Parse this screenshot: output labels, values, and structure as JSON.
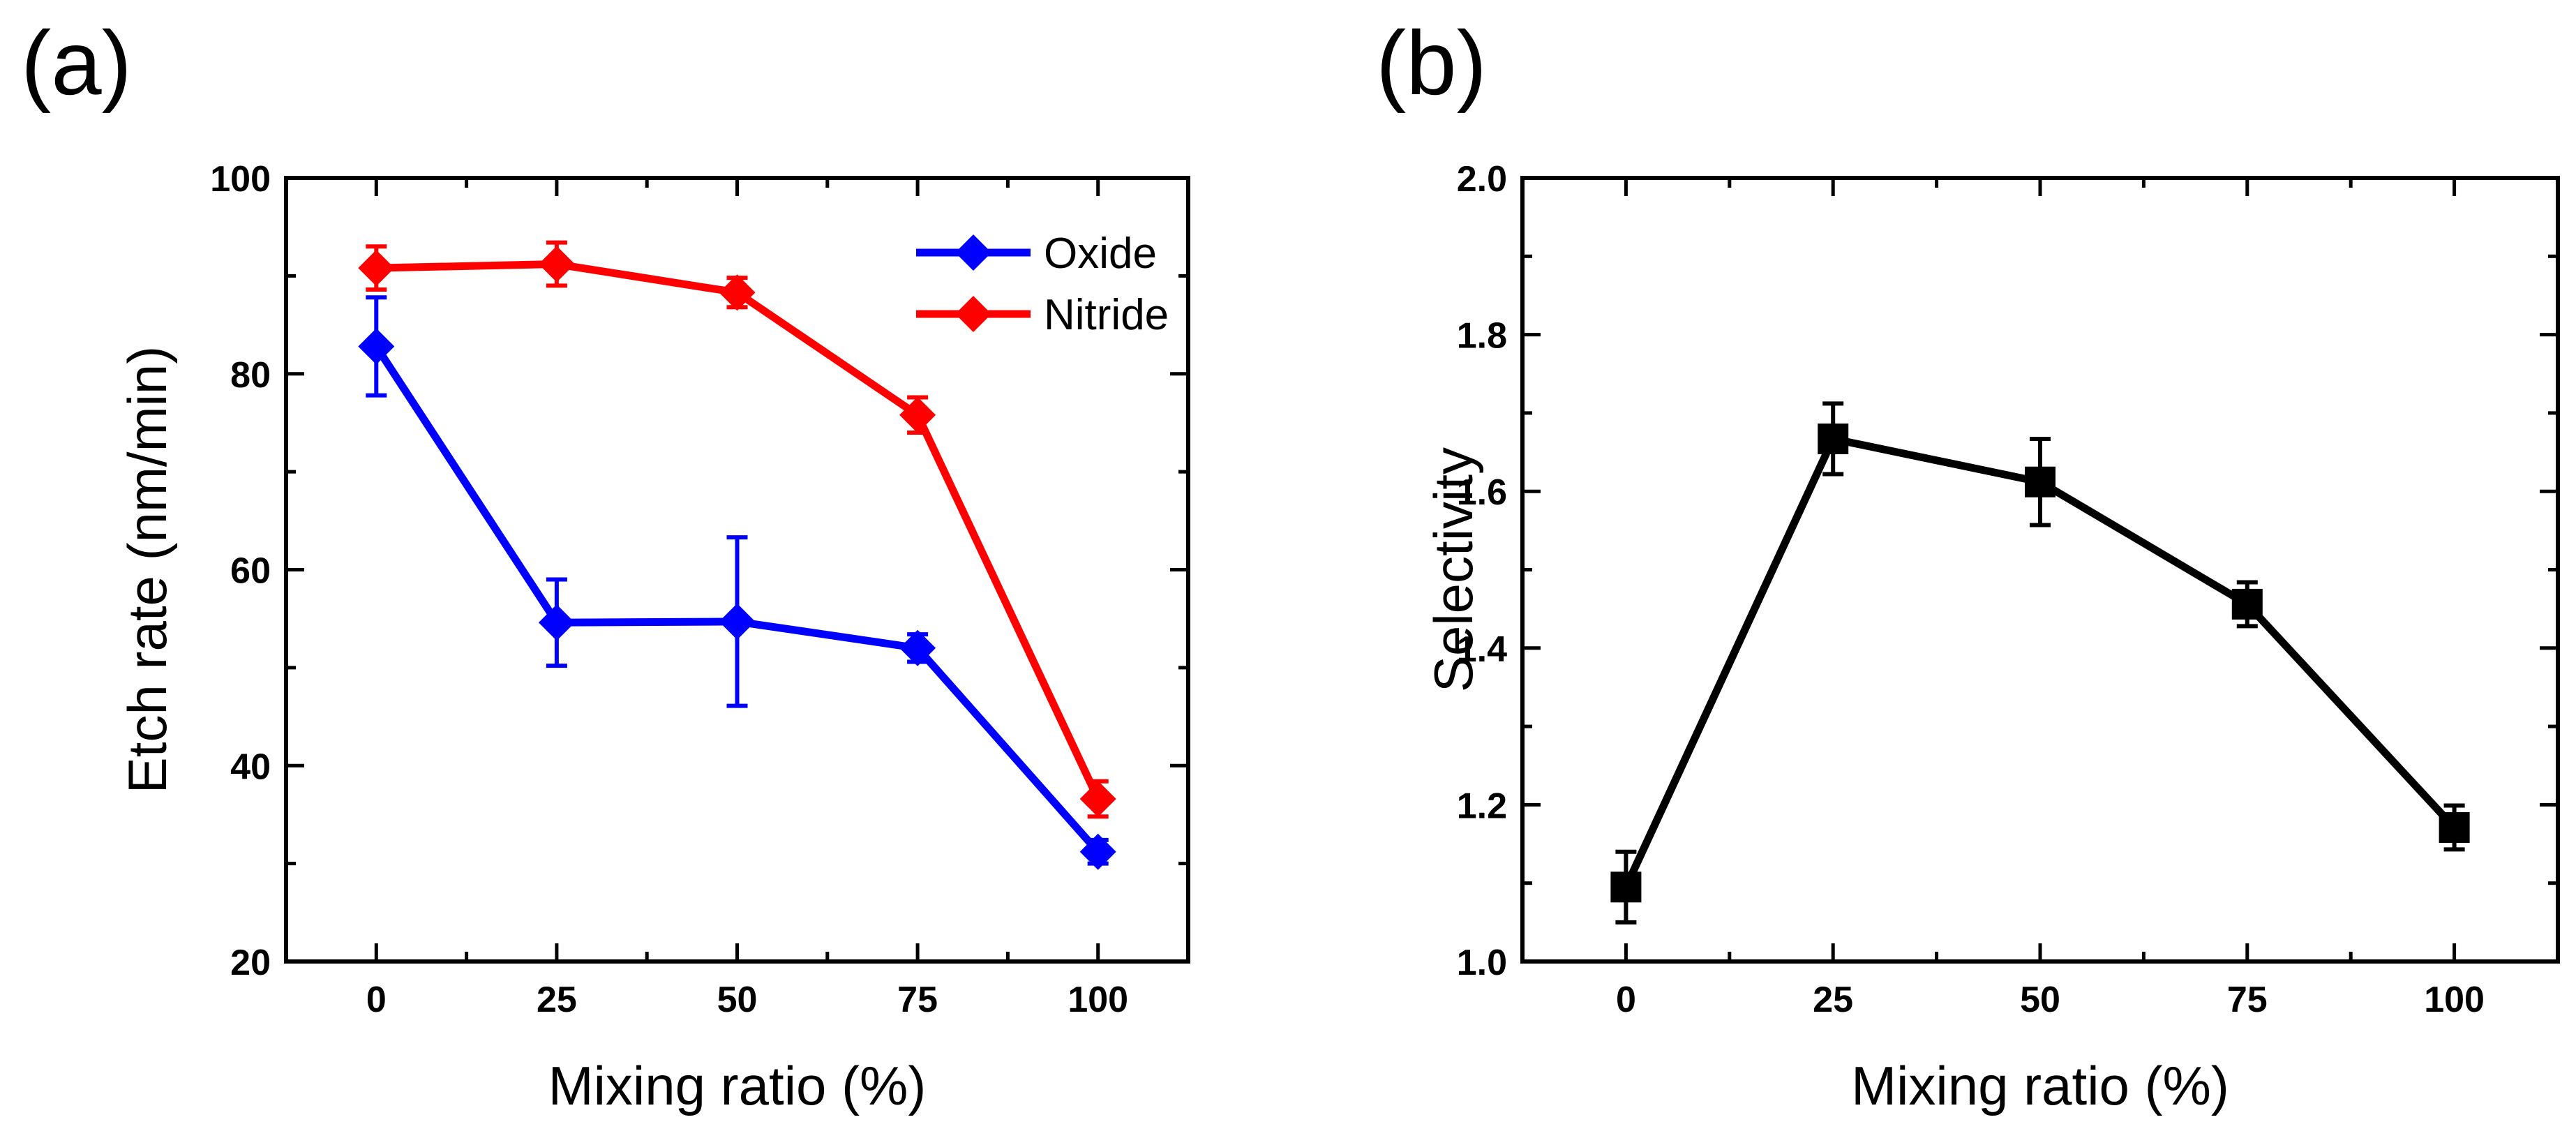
{
  "chart_data": [
    {
      "panel_label": "(a)",
      "type": "line",
      "xlabel": "Mixing ratio (%)",
      "ylabel": "Etch rate (nm/min)",
      "x": [
        0,
        25,
        50,
        75,
        100
      ],
      "xticks": [
        "0",
        "25",
        "50",
        "75",
        "100"
      ],
      "xlim": [
        -12.5,
        112.5
      ],
      "ylim": [
        20,
        100
      ],
      "yticks": [
        "20",
        "40",
        "60",
        "80",
        "100"
      ],
      "grid": false,
      "legend_position": "top-right",
      "series": [
        {
          "name": "Oxide",
          "color": "#0000ff",
          "marker": "diamond",
          "values": [
            82.8,
            54.6,
            54.7,
            52.0,
            31.2
          ],
          "errors": [
            5.0,
            4.4,
            8.6,
            1.4,
            1.2
          ]
        },
        {
          "name": "Nitride",
          "color": "#ff0000",
          "marker": "diamond",
          "values": [
            90.8,
            91.2,
            88.3,
            75.8,
            36.6
          ],
          "errors": [
            2.2,
            2.2,
            1.5,
            1.8,
            1.8
          ]
        }
      ]
    },
    {
      "panel_label": "(b)",
      "type": "line",
      "xlabel": "Mixing ratio (%)",
      "ylabel": "Selectivity",
      "x": [
        0,
        25,
        50,
        75,
        100
      ],
      "xticks": [
        "0",
        "25",
        "50",
        "75",
        "100"
      ],
      "xlim": [
        -12.5,
        112.5
      ],
      "ylim": [
        1.0,
        2.0
      ],
      "yticks": [
        "1.0",
        "1.2",
        "1.4",
        "1.6",
        "1.8",
        "2.0"
      ],
      "grid": false,
      "series": [
        {
          "color": "#000000",
          "marker": "square",
          "values": [
            1.095,
            1.667,
            1.612,
            1.456,
            1.171
          ],
          "errors": [
            0.045,
            0.045,
            0.055,
            0.028,
            0.028
          ]
        }
      ]
    }
  ]
}
